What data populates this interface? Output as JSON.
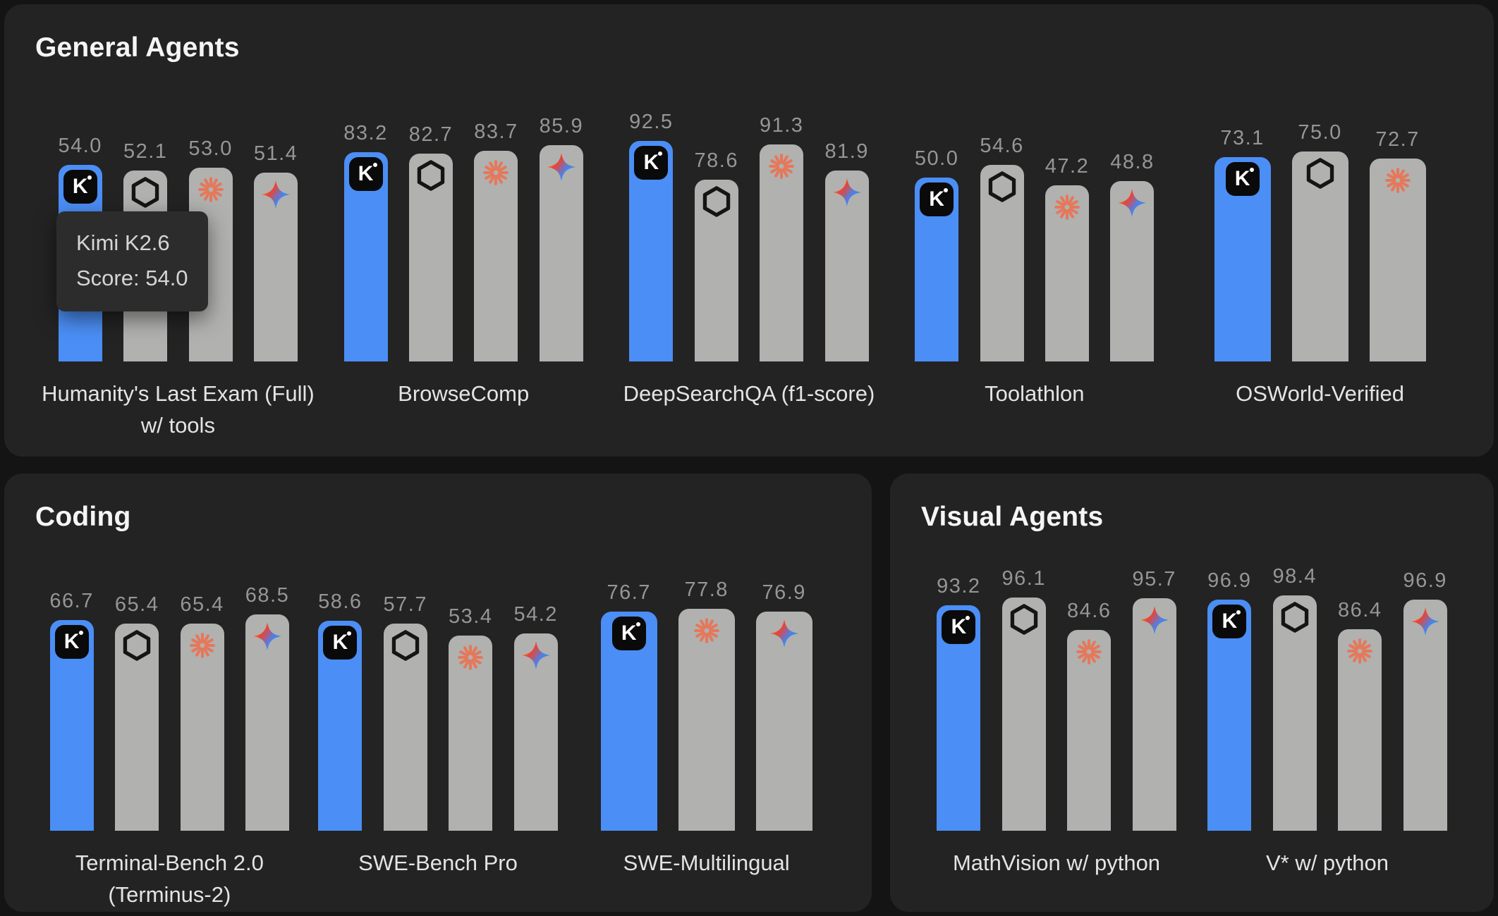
{
  "colors": {
    "page_bg": "#141414",
    "panel_bg": "#232323",
    "kimi_blue": "#4b8ef5",
    "bar_gray": "#b1b1b0",
    "kimi_badge_black": "#0a0a0a",
    "openai_black": "#151515",
    "anthropic_orange": "#e5785a",
    "gemini_gradient": [
      "#f9ab00",
      "#ea4335",
      "#4285f4",
      "#34a853"
    ],
    "value_label_gray": "#969696",
    "tooltip_bg": "#2c2c2c"
  },
  "tooltip": {
    "title": "Kimi K2.6",
    "score": "Score: 54.0"
  },
  "chart_data": {
    "type": "bar",
    "ylim": [
      0,
      100
    ],
    "grid": false,
    "legend": "none (models identified by logo icons atop each bar)",
    "value_labels": true,
    "note": "bars normalized per chart; first bar (Kimi) highlighted blue, others gray",
    "panels": [
      {
        "title": "General Agents",
        "charts": [
          {
            "benchmark": "Humanity's Last Exam (Full) w/ tools",
            "label_lines": [
              "Humanity's Last Exam (Full)",
              "w/ tools"
            ],
            "series": [
              {
                "model": "kimi",
                "icon": "kimi-logo-icon",
                "value": 54.0
              },
              {
                "model": "openai",
                "icon": "openai-logo-icon",
                "value": 52.1
              },
              {
                "model": "anthropic",
                "icon": "anthropic-logo-icon",
                "value": 53.0
              },
              {
                "model": "gemini",
                "icon": "gemini-logo-icon",
                "value": 51.4
              }
            ],
            "tooltip_visible": true
          },
          {
            "benchmark": "BrowseComp",
            "label_lines": [
              "BrowseComp"
            ],
            "series": [
              {
                "model": "kimi",
                "icon": "kimi-logo-icon",
                "value": 83.2
              },
              {
                "model": "openai",
                "icon": "openai-logo-icon",
                "value": 82.7
              },
              {
                "model": "anthropic",
                "icon": "anthropic-logo-icon",
                "value": 83.7
              },
              {
                "model": "gemini",
                "icon": "gemini-logo-icon",
                "value": 85.9
              }
            ]
          },
          {
            "benchmark": "DeepSearchQA (f1-score)",
            "label_lines": [
              "DeepSearchQA (f1-score)"
            ],
            "series": [
              {
                "model": "kimi",
                "icon": "kimi-logo-icon",
                "value": 92.5
              },
              {
                "model": "openai",
                "icon": "openai-logo-icon",
                "value": 78.6
              },
              {
                "model": "anthropic",
                "icon": "anthropic-logo-icon",
                "value": 91.3
              },
              {
                "model": "gemini",
                "icon": "gemini-logo-icon",
                "value": 81.9
              }
            ]
          },
          {
            "benchmark": "Toolathlon",
            "label_lines": [
              "Toolathlon"
            ],
            "series": [
              {
                "model": "kimi",
                "icon": "kimi-logo-icon",
                "value": 50.0
              },
              {
                "model": "openai",
                "icon": "openai-logo-icon",
                "value": 54.6
              },
              {
                "model": "anthropic",
                "icon": "anthropic-logo-icon",
                "value": 47.2
              },
              {
                "model": "gemini",
                "icon": "gemini-logo-icon",
                "value": 48.8
              }
            ]
          },
          {
            "benchmark": "OSWorld-Verified",
            "label_lines": [
              "OSWorld-Verified"
            ],
            "series": [
              {
                "model": "kimi",
                "icon": "kimi-logo-icon",
                "value": 73.1
              },
              {
                "model": "openai",
                "icon": "openai-logo-icon",
                "value": 75.0
              },
              {
                "model": "anthropic",
                "icon": "anthropic-logo-icon",
                "value": 72.7
              }
            ]
          }
        ]
      },
      {
        "title": "Coding",
        "charts": [
          {
            "benchmark": "Terminal-Bench 2.0 (Terminus-2)",
            "label_lines": [
              "Terminal-Bench 2.0",
              "(Terminus-2)"
            ],
            "series": [
              {
                "model": "kimi",
                "icon": "kimi-logo-icon",
                "value": 66.7
              },
              {
                "model": "openai",
                "icon": "openai-logo-icon",
                "value": 65.4
              },
              {
                "model": "anthropic",
                "icon": "anthropic-logo-icon",
                "value": 65.4
              },
              {
                "model": "gemini",
                "icon": "gemini-logo-icon",
                "value": 68.5
              }
            ]
          },
          {
            "benchmark": "SWE-Bench Pro",
            "label_lines": [
              "SWE-Bench Pro"
            ],
            "series": [
              {
                "model": "kimi",
                "icon": "kimi-logo-icon",
                "value": 58.6
              },
              {
                "model": "openai",
                "icon": "openai-logo-icon",
                "value": 57.7
              },
              {
                "model": "anthropic",
                "icon": "anthropic-logo-icon",
                "value": 53.4
              },
              {
                "model": "gemini",
                "icon": "gemini-logo-icon",
                "value": 54.2
              }
            ]
          },
          {
            "benchmark": "SWE-Multilingual",
            "label_lines": [
              "SWE-Multilingual"
            ],
            "series": [
              {
                "model": "kimi",
                "icon": "kimi-logo-icon",
                "value": 76.7
              },
              {
                "model": "anthropic",
                "icon": "anthropic-logo-icon",
                "value": 77.8
              },
              {
                "model": "gemini",
                "icon": "gemini-logo-icon",
                "value": 76.9
              }
            ]
          }
        ]
      },
      {
        "title": "Visual Agents",
        "charts": [
          {
            "benchmark": "MathVision w/ python",
            "label_lines": [
              "MathVision w/ python"
            ],
            "series": [
              {
                "model": "kimi",
                "icon": "kimi-logo-icon",
                "value": 93.2
              },
              {
                "model": "openai",
                "icon": "openai-logo-icon",
                "value": 96.1
              },
              {
                "model": "anthropic",
                "icon": "anthropic-logo-icon",
                "value": 84.6
              },
              {
                "model": "gemini",
                "icon": "gemini-logo-icon",
                "value": 95.7
              }
            ]
          },
          {
            "benchmark": "V* w/ python",
            "label_lines": [
              "V* w/ python"
            ],
            "series": [
              {
                "model": "kimi",
                "icon": "kimi-logo-icon",
                "value": 96.9
              },
              {
                "model": "openai",
                "icon": "openai-logo-icon",
                "value": 98.4
              },
              {
                "model": "anthropic",
                "icon": "anthropic-logo-icon",
                "value": 86.4
              },
              {
                "model": "gemini",
                "icon": "gemini-logo-icon",
                "value": 96.9
              }
            ]
          }
        ]
      }
    ]
  }
}
